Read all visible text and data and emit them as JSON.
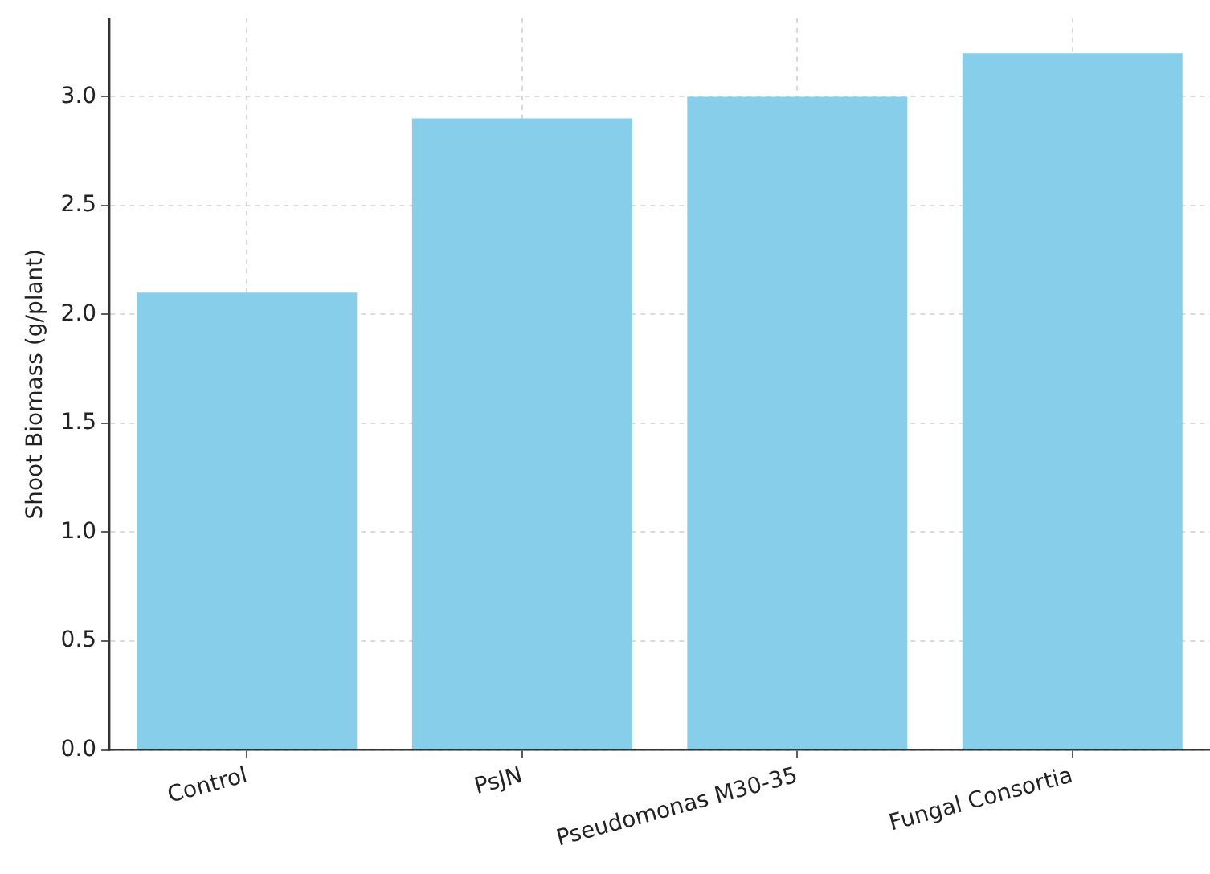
{
  "chart_data": {
    "type": "bar",
    "ylabel": "Shoot Biomass (g/plant)",
    "categories": [
      "Control",
      "PsJN",
      "Pseudomonas M30-35",
      "Fungal Consortia"
    ],
    "values": [
      2.1,
      2.9,
      3.0,
      3.2
    ],
    "color": "#87ceeb",
    "ylim": [
      0,
      3.36
    ],
    "yticks": [
      {
        "value": 0,
        "label": "0.0"
      },
      0.5,
      {
        "value": 1,
        "label": "1.0"
      },
      1.5,
      {
        "value": 2,
        "label": "2.0"
      },
      2.5,
      {
        "value": 3,
        "label": "3.0"
      }
    ],
    "grid": true,
    "legend": false
  }
}
